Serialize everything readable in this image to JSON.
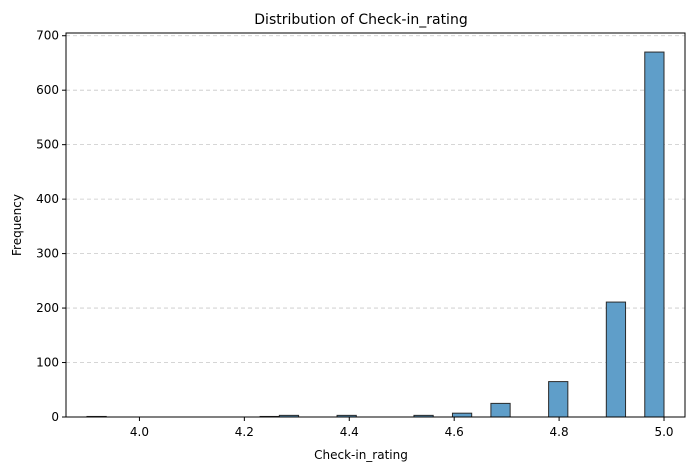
{
  "chart_data": {
    "type": "bar",
    "title": "Distribution of Check-in_rating",
    "xlabel": "Check-in_rating",
    "ylabel": "Frequency",
    "xlim": [
      3.86,
      5.04
    ],
    "ylim": [
      0,
      705
    ],
    "xticks": [
      4.0,
      4.2,
      4.4,
      4.6,
      4.8,
      5.0
    ],
    "xtick_labels": [
      "4.0",
      "4.2",
      "4.4",
      "4.6",
      "4.8",
      "5.0"
    ],
    "yticks": [
      0,
      100,
      200,
      300,
      400,
      500,
      600,
      700
    ],
    "ytick_labels": [
      "0",
      "100",
      "200",
      "300",
      "400",
      "500",
      "600",
      "700"
    ],
    "grid": "y-dashed",
    "bin_width": 0.036667,
    "bins": [
      {
        "x0": 3.9,
        "count": 1
      },
      {
        "x0": 4.23,
        "count": 1
      },
      {
        "x0": 4.2667,
        "count": 3
      },
      {
        "x0": 4.3767,
        "count": 3
      },
      {
        "x0": 4.5233,
        "count": 3
      },
      {
        "x0": 4.5967,
        "count": 7
      },
      {
        "x0": 4.67,
        "count": 25
      },
      {
        "x0": 4.78,
        "count": 65
      },
      {
        "x0": 4.89,
        "count": 211
      },
      {
        "x0": 4.9633,
        "count": 670
      }
    ],
    "colors": {
      "bar_fill": "#5f9ec9",
      "bar_edge": "#2a2a2a",
      "grid": "#c8c8c8",
      "axis": "#000000"
    }
  }
}
